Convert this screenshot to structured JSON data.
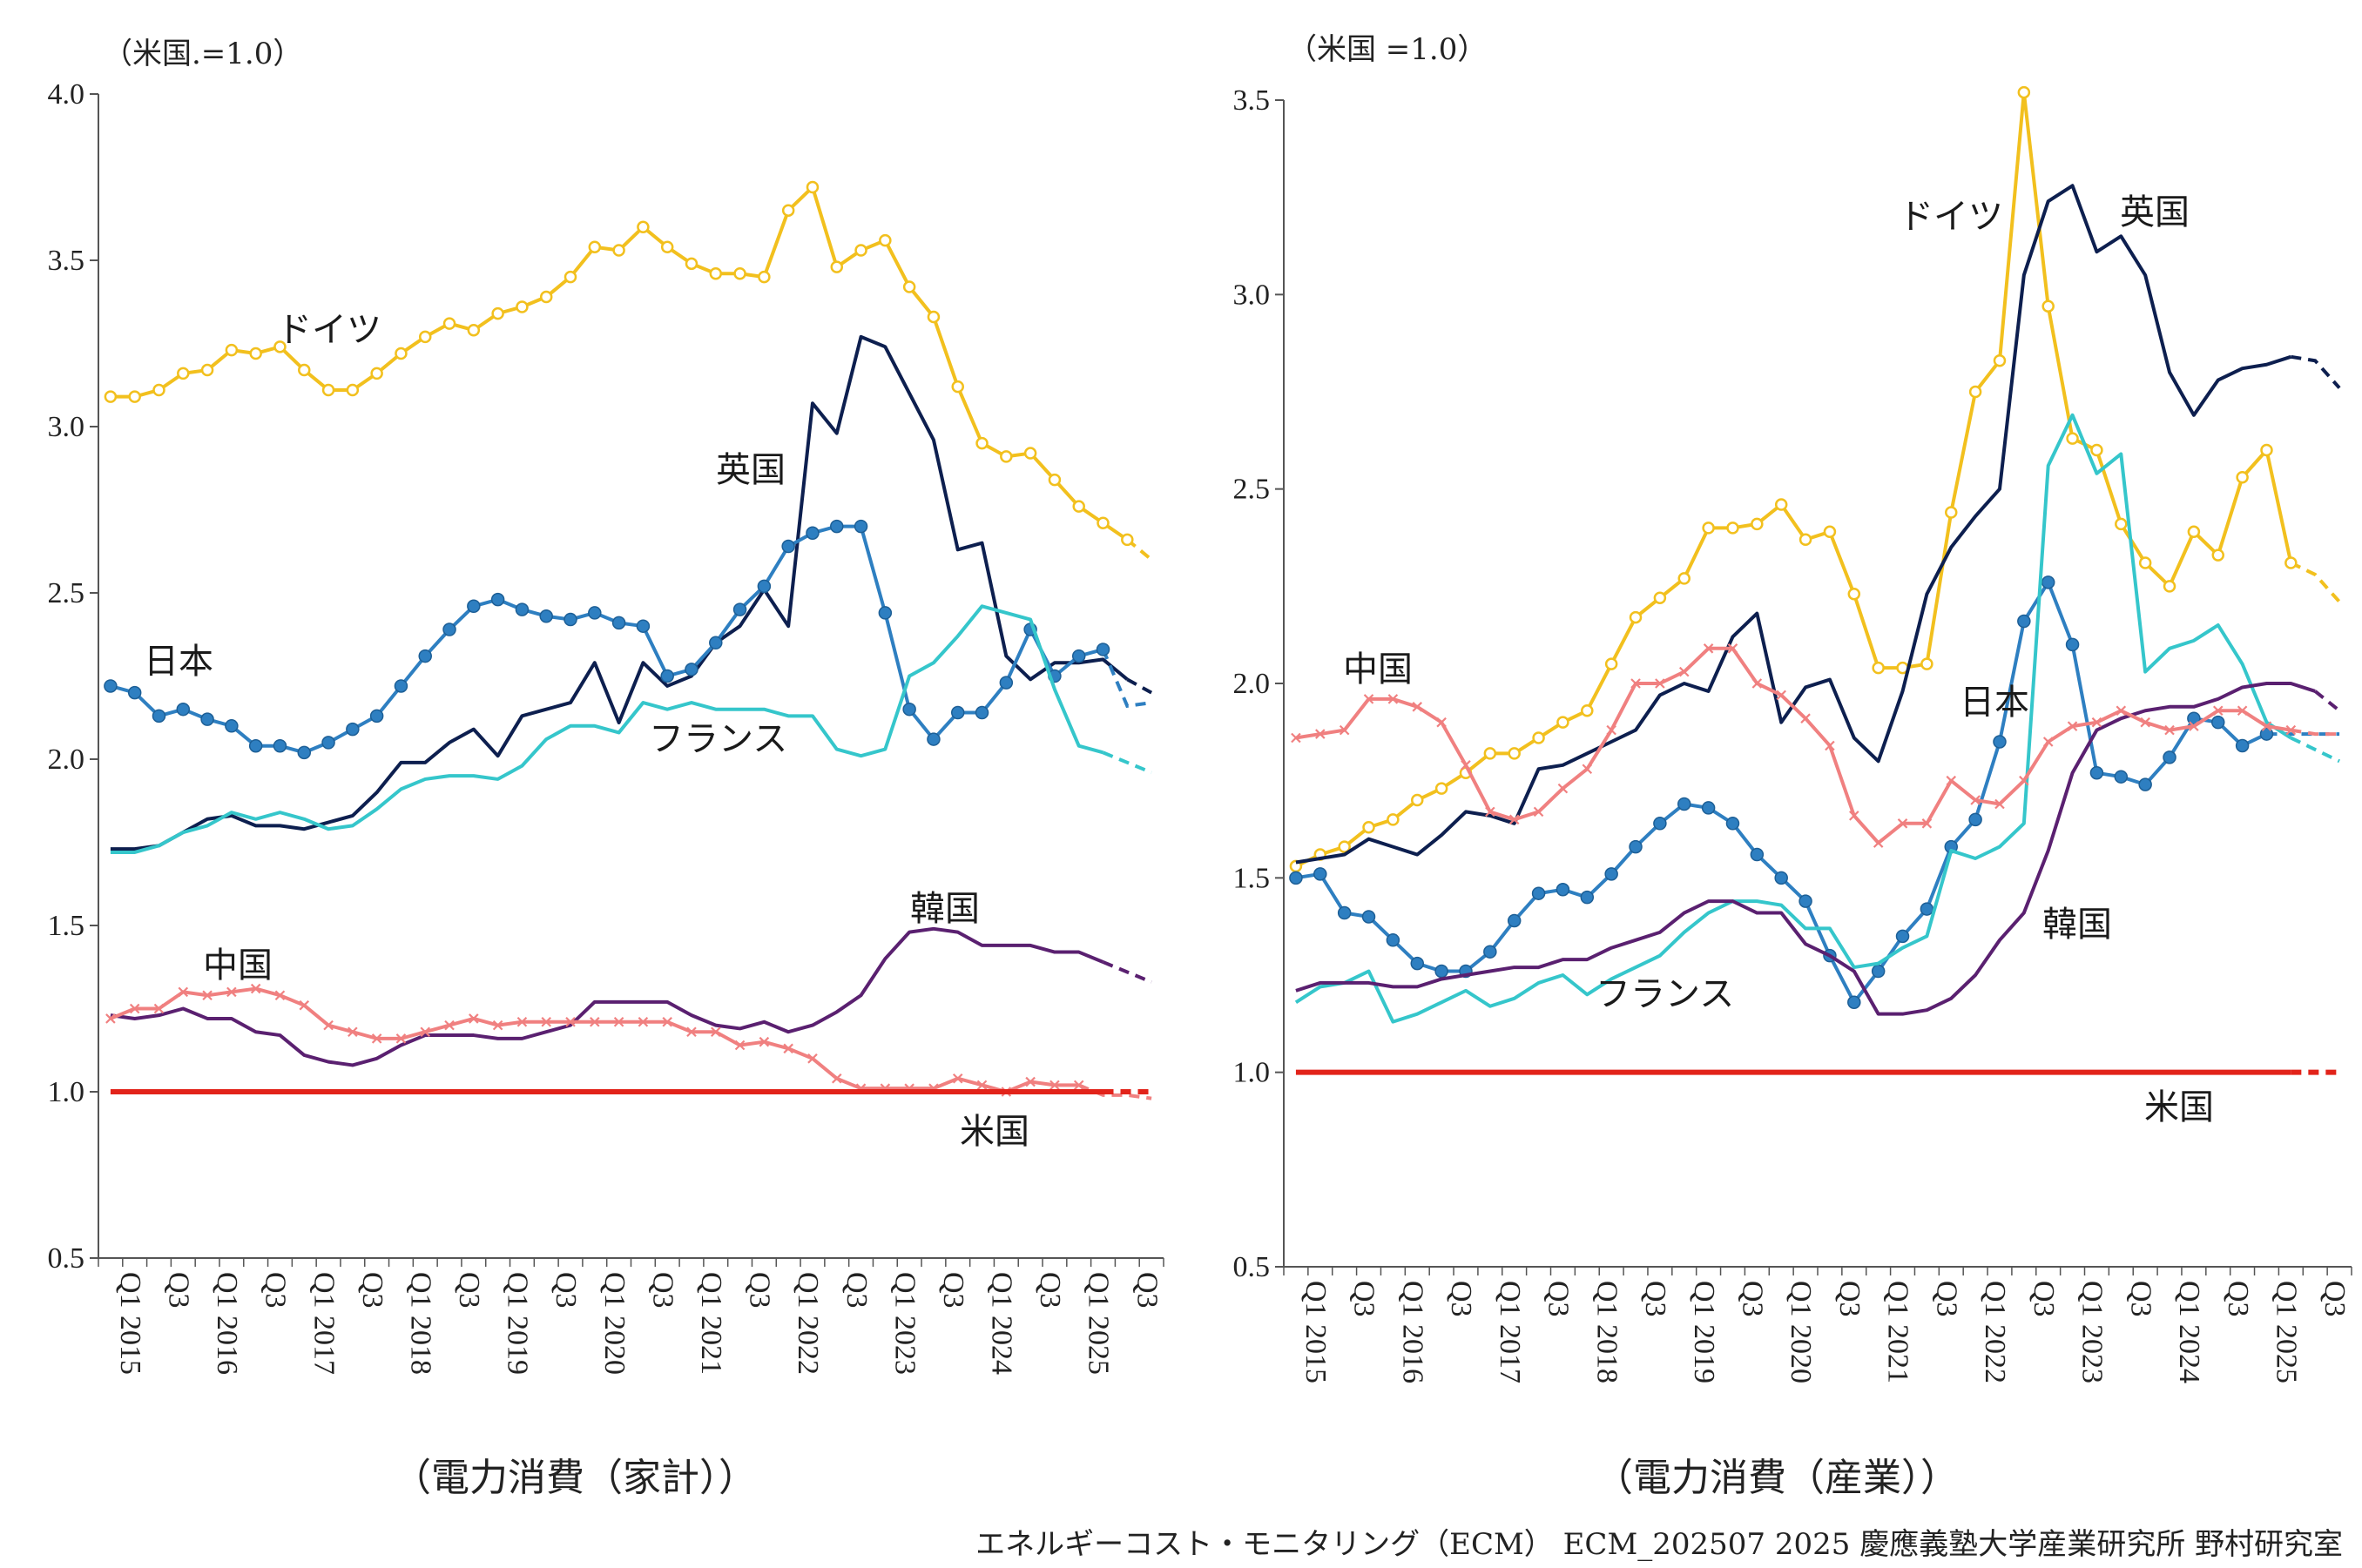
{
  "chart_data": [
    {
      "type": "line",
      "title": "（電力消費（家計））",
      "unit_label": "（米国.=1.0）",
      "ylim": [
        0.5,
        4.0
      ],
      "y_ticks": [
        "0.5",
        "1.0",
        "1.5",
        "2.0",
        "2.5",
        "3.0",
        "3.5",
        "4.0"
      ],
      "x_tick_labels": [
        "Q1 2015",
        "Q3",
        "Q1 2016",
        "Q3",
        "Q1 2017",
        "Q3",
        "Q1 2018",
        "Q3",
        "Q1 2019",
        "Q3",
        "Q1 2020",
        "Q3",
        "Q1 2021",
        "Q3",
        "Q1 2022",
        "Q3",
        "Q1 2023",
        "Q3",
        "Q1 2024",
        "Q3",
        "Q1 2025",
        "Q3"
      ],
      "n_quarters": 44,
      "series": [
        {
          "name": "ドイツ",
          "color": "#f2c01e",
          "marker": "circle_open",
          "solid_end": 42,
          "values": [
            3.09,
            3.09,
            3.11,
            3.16,
            3.17,
            3.23,
            3.22,
            3.24,
            3.17,
            3.11,
            3.11,
            3.16,
            3.22,
            3.27,
            3.31,
            3.29,
            3.34,
            3.36,
            3.39,
            3.45,
            3.54,
            3.53,
            3.6,
            3.54,
            3.49,
            3.46,
            3.46,
            3.45,
            3.65,
            3.72,
            3.48,
            3.53,
            3.56,
            3.42,
            3.33,
            3.12,
            2.95,
            2.91,
            2.92,
            2.84,
            2.76,
            2.71,
            2.66,
            2.6
          ]
        },
        {
          "name": "英国",
          "color": "#0d1f4f",
          "marker": "none",
          "solid_end": 42,
          "values": [
            1.73,
            1.73,
            1.74,
            1.78,
            1.82,
            1.83,
            1.8,
            1.8,
            1.79,
            1.81,
            1.83,
            1.9,
            1.99,
            1.99,
            2.05,
            2.09,
            2.01,
            2.13,
            2.15,
            2.17,
            2.29,
            2.11,
            2.29,
            2.22,
            2.25,
            2.35,
            2.4,
            2.51,
            2.4,
            3.07,
            2.98,
            3.27,
            3.24,
            3.1,
            2.96,
            2.63,
            2.65,
            2.31,
            2.24,
            2.29,
            2.29,
            2.3,
            2.24,
            2.2
          ]
        },
        {
          "name": "日本",
          "color": "#2e7fc1",
          "marker": "circle_filled",
          "solid_end": 41,
          "values": [
            2.22,
            2.2,
            2.13,
            2.15,
            2.12,
            2.1,
            2.04,
            2.04,
            2.02,
            2.05,
            2.09,
            2.13,
            2.22,
            2.31,
            2.39,
            2.46,
            2.48,
            2.45,
            2.43,
            2.42,
            2.44,
            2.41,
            2.4,
            2.25,
            2.27,
            2.35,
            2.45,
            2.52,
            2.64,
            2.68,
            2.7,
            2.7,
            2.44,
            2.15,
            2.06,
            2.14,
            2.14,
            2.23,
            2.39,
            2.25,
            2.31,
            2.33,
            2.16,
            2.17
          ]
        },
        {
          "name": "フランス",
          "color": "#35c6cb",
          "marker": "none",
          "solid_end": 41,
          "values": [
            1.72,
            1.72,
            1.74,
            1.78,
            1.8,
            1.84,
            1.82,
            1.84,
            1.82,
            1.79,
            1.8,
            1.85,
            1.91,
            1.94,
            1.95,
            1.95,
            1.94,
            1.98,
            2.06,
            2.1,
            2.1,
            2.08,
            2.17,
            2.15,
            2.17,
            2.15,
            2.15,
            2.15,
            2.13,
            2.13,
            2.03,
            2.01,
            2.03,
            2.25,
            2.29,
            2.37,
            2.46,
            2.44,
            2.42,
            2.21,
            2.04,
            2.02,
            1.99,
            1.96
          ]
        },
        {
          "name": "韓国",
          "color": "#5a2070",
          "marker": "none",
          "solid_end": 41,
          "values": [
            1.23,
            1.22,
            1.23,
            1.25,
            1.22,
            1.22,
            1.18,
            1.17,
            1.11,
            1.09,
            1.08,
            1.1,
            1.14,
            1.17,
            1.17,
            1.17,
            1.16,
            1.16,
            1.18,
            1.2,
            1.27,
            1.27,
            1.27,
            1.27,
            1.23,
            1.2,
            1.19,
            1.21,
            1.18,
            1.2,
            1.24,
            1.29,
            1.4,
            1.48,
            1.49,
            1.48,
            1.44,
            1.44,
            1.44,
            1.42,
            1.42,
            1.39,
            1.36,
            1.33
          ]
        },
        {
          "name": "中国",
          "color": "#f08080",
          "marker": "x",
          "solid_end": 40,
          "values": [
            1.22,
            1.25,
            1.25,
            1.3,
            1.29,
            1.3,
            1.31,
            1.29,
            1.26,
            1.2,
            1.18,
            1.16,
            1.16,
            1.18,
            1.2,
            1.22,
            1.2,
            1.21,
            1.21,
            1.21,
            1.21,
            1.21,
            1.21,
            1.21,
            1.18,
            1.18,
            1.14,
            1.15,
            1.13,
            1.1,
            1.04,
            1.01,
            1.01,
            1.01,
            1.01,
            1.04,
            1.02,
            1.0,
            1.03,
            1.02,
            1.02,
            0.99,
            0.99,
            0.98
          ]
        },
        {
          "name": "米国",
          "color": "#e2231a",
          "marker": "none",
          "solid_end": 41,
          "values": [
            1.0,
            1.0,
            1.0,
            1.0,
            1.0,
            1.0,
            1.0,
            1.0,
            1.0,
            1.0,
            1.0,
            1.0,
            1.0,
            1.0,
            1.0,
            1.0,
            1.0,
            1.0,
            1.0,
            1.0,
            1.0,
            1.0,
            1.0,
            1.0,
            1.0,
            1.0,
            1.0,
            1.0,
            1.0,
            1.0,
            1.0,
            1.0,
            1.0,
            1.0,
            1.0,
            1.0,
            1.0,
            1.0,
            1.0,
            1.0,
            1.0,
            1.0,
            1.0,
            1.0
          ]
        }
      ],
      "annotations": [
        {
          "text": "ドイツ",
          "series": "ドイツ"
        },
        {
          "text": "英国",
          "series": "英国"
        },
        {
          "text": "日本",
          "series": "日本"
        },
        {
          "text": "フランス",
          "series": "フランス"
        },
        {
          "text": "韓国",
          "series": "韓国"
        },
        {
          "text": "中国",
          "series": "中国"
        },
        {
          "text": "米国",
          "series": "米国"
        }
      ]
    },
    {
      "type": "line",
      "title": "（電力消費（産業））",
      "unit_label": "（米国 =1.0）",
      "ylim": [
        0.5,
        3.5
      ],
      "y_ticks": [
        "0.5",
        "1.0",
        "1.5",
        "2.0",
        "2.5",
        "3.0",
        "3.5"
      ],
      "x_tick_labels": [
        "Q1 2015",
        "Q3",
        "Q1 2016",
        "Q3",
        "Q1 2017",
        "Q3",
        "Q1 2018",
        "Q3",
        "Q1 2019",
        "Q3",
        "Q1 2020",
        "Q3",
        "Q1 2021",
        "Q3",
        "Q1 2022",
        "Q3",
        "Q1 2023",
        "Q3",
        "Q1 2024",
        "Q3",
        "Q1 2025",
        "Q3"
      ],
      "n_quarters": 44,
      "series": [
        {
          "name": "ドイツ",
          "color": "#f2c01e",
          "marker": "circle_open",
          "solid_end": 41,
          "values": [
            1.53,
            1.56,
            1.58,
            1.63,
            1.65,
            1.7,
            1.73,
            1.77,
            1.82,
            1.82,
            1.86,
            1.9,
            1.93,
            2.05,
            2.17,
            2.22,
            2.27,
            2.4,
            2.4,
            2.41,
            2.46,
            2.37,
            2.39,
            2.23,
            2.04,
            2.04,
            2.05,
            2.44,
            2.75,
            2.83,
            3.52,
            2.97,
            2.63,
            2.6,
            2.41,
            2.31,
            2.25,
            2.39,
            2.33,
            2.53,
            2.6,
            2.31,
            2.28,
            2.21
          ]
        },
        {
          "name": "英国",
          "color": "#0d1f4f",
          "marker": "none",
          "solid_end": 41,
          "values": [
            1.54,
            1.55,
            1.56,
            1.6,
            1.58,
            1.56,
            1.61,
            1.67,
            1.66,
            1.64,
            1.78,
            1.79,
            1.82,
            1.85,
            1.88,
            1.97,
            2.0,
            1.98,
            2.12,
            2.18,
            1.9,
            1.99,
            2.01,
            1.86,
            1.8,
            1.98,
            2.23,
            2.35,
            2.43,
            2.5,
            3.05,
            3.24,
            3.28,
            3.11,
            3.15,
            3.05,
            2.8,
            2.69,
            2.78,
            2.81,
            2.82,
            2.84,
            2.83,
            2.76
          ]
        },
        {
          "name": "日本",
          "color": "#2e7fc1",
          "marker": "circle_filled",
          "solid_end": 40,
          "values": [
            1.5,
            1.51,
            1.41,
            1.4,
            1.34,
            1.28,
            1.26,
            1.26,
            1.31,
            1.39,
            1.46,
            1.47,
            1.45,
            1.51,
            1.58,
            1.64,
            1.69,
            1.68,
            1.64,
            1.56,
            1.5,
            1.44,
            1.3,
            1.18,
            1.26,
            1.35,
            1.42,
            1.58,
            1.65,
            1.85,
            2.16,
            2.26,
            2.1,
            1.77,
            1.76,
            1.74,
            1.81,
            1.91,
            1.9,
            1.84,
            1.87,
            1.87,
            1.87,
            1.87
          ]
        },
        {
          "name": "フランス",
          "color": "#35c6cb",
          "marker": "none",
          "solid_end": 41,
          "values": [
            1.18,
            1.22,
            1.23,
            1.26,
            1.13,
            1.15,
            1.18,
            1.21,
            1.17,
            1.19,
            1.23,
            1.25,
            1.2,
            1.24,
            1.27,
            1.3,
            1.36,
            1.41,
            1.44,
            1.44,
            1.43,
            1.37,
            1.37,
            1.27,
            1.28,
            1.32,
            1.35,
            1.57,
            1.55,
            1.58,
            1.64,
            2.56,
            2.69,
            2.54,
            2.59,
            2.03,
            2.09,
            2.11,
            2.15,
            2.05,
            1.9,
            1.86,
            1.83,
            1.8
          ]
        },
        {
          "name": "韓国",
          "color": "#5a2070",
          "marker": "none",
          "solid_end": 42,
          "values": [
            1.21,
            1.23,
            1.23,
            1.23,
            1.22,
            1.22,
            1.24,
            1.25,
            1.26,
            1.27,
            1.27,
            1.29,
            1.29,
            1.32,
            1.34,
            1.36,
            1.41,
            1.44,
            1.44,
            1.41,
            1.41,
            1.33,
            1.3,
            1.26,
            1.15,
            1.15,
            1.16,
            1.19,
            1.25,
            1.34,
            1.41,
            1.57,
            1.77,
            1.88,
            1.91,
            1.93,
            1.94,
            1.94,
            1.96,
            1.99,
            2.0,
            2.0,
            1.98,
            1.93
          ]
        },
        {
          "name": "中国",
          "color": "#f08080",
          "marker": "x",
          "solid_end": 41,
          "values": [
            1.86,
            1.87,
            1.88,
            1.96,
            1.96,
            1.94,
            1.9,
            1.79,
            1.67,
            1.65,
            1.67,
            1.73,
            1.78,
            1.88,
            2.0,
            2.0,
            2.03,
            2.09,
            2.09,
            2.0,
            1.97,
            1.91,
            1.84,
            1.66,
            1.59,
            1.64,
            1.64,
            1.75,
            1.7,
            1.69,
            1.75,
            1.85,
            1.89,
            1.9,
            1.93,
            1.9,
            1.88,
            1.89,
            1.93,
            1.93,
            1.89,
            1.88,
            1.87,
            1.87
          ]
        },
        {
          "name": "米国",
          "color": "#e2231a",
          "marker": "none",
          "solid_end": 41,
          "values": [
            1.0,
            1.0,
            1.0,
            1.0,
            1.0,
            1.0,
            1.0,
            1.0,
            1.0,
            1.0,
            1.0,
            1.0,
            1.0,
            1.0,
            1.0,
            1.0,
            1.0,
            1.0,
            1.0,
            1.0,
            1.0,
            1.0,
            1.0,
            1.0,
            1.0,
            1.0,
            1.0,
            1.0,
            1.0,
            1.0,
            1.0,
            1.0,
            1.0,
            1.0,
            1.0,
            1.0,
            1.0,
            1.0,
            1.0,
            1.0,
            1.0,
            1.0,
            1.0,
            1.0
          ]
        }
      ],
      "annotations": [
        {
          "text": "ドイツ",
          "series": "ドイツ"
        },
        {
          "text": "英国",
          "series": "英国"
        },
        {
          "text": "中国",
          "series": "中国"
        },
        {
          "text": "日本",
          "series": "日本"
        },
        {
          "text": "韓国",
          "series": "韓国"
        },
        {
          "text": "フランス",
          "series": "フランス"
        },
        {
          "text": "米国",
          "series": "米国"
        }
      ]
    }
  ],
  "footer": "エネルギーコスト・モニタリング（ECM） ECM_202507 2025 慶應義塾大学産業研究所 野村研究室"
}
